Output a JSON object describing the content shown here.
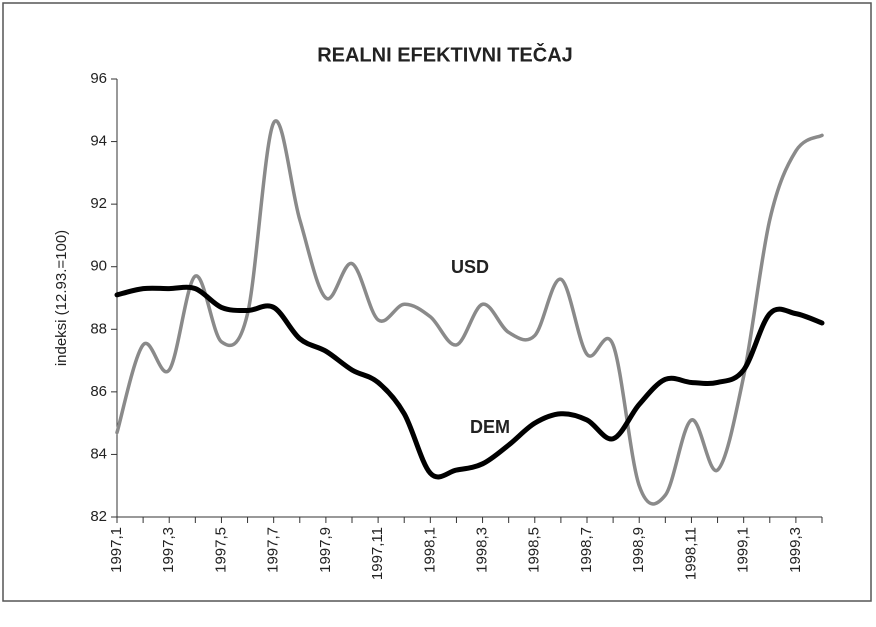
{
  "chart_data": {
    "type": "line",
    "title": "REALNI EFEKTIVNI TEČAJ",
    "y_label": "indeksi (12.93.=100)",
    "categories": [
      "1997,1",
      null,
      "1997,3",
      null,
      "1997,5",
      null,
      "1997,7",
      null,
      "1997,9",
      null,
      "1997,11",
      null,
      "1998,1",
      null,
      "1998,3",
      null,
      "1998,5",
      null,
      "1998,7",
      null,
      "1998,9",
      null,
      "1998,11",
      null,
      "1999,1",
      null,
      "1999,3",
      null
    ],
    "series": [
      {
        "name": "USD",
        "color": "#8a8a8a",
        "values": [
          84.7,
          87.5,
          86.7,
          89.7,
          87.6,
          88.5,
          94.6,
          91.5,
          89.0,
          90.1,
          88.3,
          88.8,
          88.4,
          87.5,
          88.8,
          87.9,
          87.8,
          89.6,
          87.2,
          87.5,
          83.0,
          82.7,
          85.1,
          83.5,
          86.5,
          91.5,
          93.7,
          94.2
        ]
      },
      {
        "name": "DEM",
        "color": "#000000",
        "values": [
          89.1,
          89.3,
          89.3,
          89.3,
          88.7,
          88.6,
          88.7,
          87.7,
          87.3,
          86.7,
          86.3,
          85.3,
          83.4,
          83.5,
          83.7,
          84.3,
          85.0,
          85.3,
          85.1,
          84.5,
          85.6,
          86.4,
          86.3,
          86.3,
          86.7,
          88.5,
          88.5,
          88.2
        ]
      }
    ],
    "ylim": [
      82,
      96
    ],
    "yticks": [
      82,
      84,
      86,
      88,
      90,
      92,
      94,
      96
    ],
    "grid": false
  }
}
